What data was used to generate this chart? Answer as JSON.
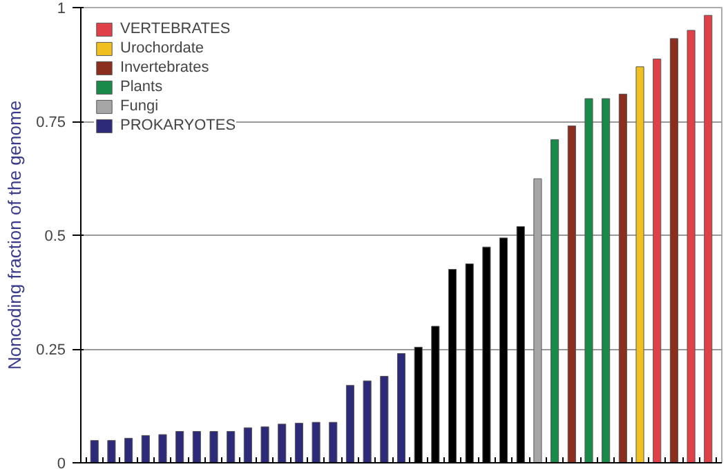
{
  "chart_data": {
    "type": "bar",
    "ylabel": "Noncoding fraction of the genome",
    "categories": [
      null,
      null,
      null,
      null,
      null,
      null,
      null,
      null,
      null,
      null,
      null,
      null,
      null,
      null,
      null,
      null,
      null,
      null,
      null,
      null,
      null,
      null,
      null,
      null,
      null,
      null,
      null,
      null,
      null,
      null,
      null,
      null,
      null,
      null,
      null,
      null,
      null
    ],
    "series": [
      {
        "name": "PROKARYOTES",
        "color": "#2e2a7a",
        "values": [
          0.049,
          0.049,
          0.054,
          0.06,
          0.062,
          0.069,
          0.069,
          0.069,
          0.069,
          0.077,
          0.079,
          0.085,
          0.087,
          0.089,
          0.089,
          0.17,
          0.18,
          0.19,
          0.24,
          null,
          null,
          null,
          null,
          null,
          null,
          null,
          null,
          null,
          null,
          null,
          null,
          null,
          null,
          null,
          null,
          null,
          null
        ]
      },
      {
        "color": "#000000",
        "values": [
          null,
          null,
          null,
          null,
          null,
          null,
          null,
          null,
          null,
          null,
          null,
          null,
          null,
          null,
          null,
          null,
          null,
          null,
          null,
          0.254,
          0.3,
          0.425,
          0.437,
          0.474,
          0.494,
          0.519,
          null,
          null,
          null,
          null,
          null,
          null,
          null,
          null,
          null,
          null,
          null
        ]
      },
      {
        "name": "Fungi",
        "color": "#a6a6a6",
        "values": [
          null,
          null,
          null,
          null,
          null,
          null,
          null,
          null,
          null,
          null,
          null,
          null,
          null,
          null,
          null,
          null,
          null,
          null,
          null,
          null,
          null,
          null,
          null,
          null,
          null,
          null,
          0.624,
          null,
          null,
          null,
          null,
          null,
          null,
          null,
          null,
          null,
          null
        ]
      },
      {
        "name": "Plants",
        "color": "#1a8a4a",
        "values": [
          null,
          null,
          null,
          null,
          null,
          null,
          null,
          null,
          null,
          null,
          null,
          null,
          null,
          null,
          null,
          null,
          null,
          null,
          null,
          null,
          null,
          null,
          null,
          null,
          null,
          null,
          null,
          0.71,
          null,
          0.8,
          0.8,
          null,
          null,
          null,
          null,
          null,
          null
        ]
      },
      {
        "name": "Invertebrates",
        "color": "#8b2e1e",
        "values": [
          null,
          null,
          null,
          null,
          null,
          null,
          null,
          null,
          null,
          null,
          null,
          null,
          null,
          null,
          null,
          null,
          null,
          null,
          null,
          null,
          null,
          null,
          null,
          null,
          null,
          null,
          null,
          null,
          0.74,
          null,
          null,
          0.81,
          null,
          null,
          0.932,
          null,
          null
        ]
      },
      {
        "name": "Urochordate",
        "color": "#f0c020",
        "values": [
          null,
          null,
          null,
          null,
          null,
          null,
          null,
          null,
          null,
          null,
          null,
          null,
          null,
          null,
          null,
          null,
          null,
          null,
          null,
          null,
          null,
          null,
          null,
          null,
          null,
          null,
          null,
          null,
          null,
          null,
          null,
          null,
          0.87,
          null,
          null,
          null,
          null
        ]
      },
      {
        "name": "VERTEBRATES",
        "color": "#e04048",
        "values": [
          null,
          null,
          null,
          null,
          null,
          null,
          null,
          null,
          null,
          null,
          null,
          null,
          null,
          null,
          null,
          null,
          null,
          null,
          null,
          null,
          null,
          null,
          null,
          null,
          null,
          null,
          null,
          null,
          null,
          null,
          null,
          null,
          null,
          0.887,
          null,
          0.95,
          0.983
        ]
      }
    ],
    "ylim": [
      0,
      1
    ],
    "yticks": [
      0,
      0.25,
      0.5,
      0.75,
      1
    ],
    "grid": "y",
    "legend": "top left",
    "tick_labels": "y"
  }
}
